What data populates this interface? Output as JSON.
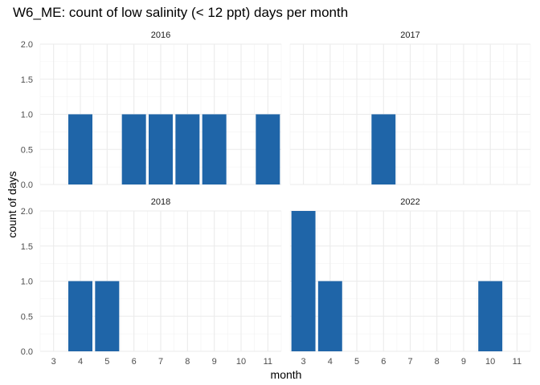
{
  "chart_data": {
    "type": "bar",
    "title": "W6_ME: count of low salinity (< 12 ppt) days per month",
    "xlabel": "month",
    "ylabel": "count of days",
    "x_ticks": [
      3,
      4,
      5,
      6,
      7,
      8,
      9,
      10,
      11
    ],
    "xlim": [
      2.5,
      11.5
    ],
    "y_ticks": [
      0.0,
      0.5,
      1.0,
      1.5,
      2.0
    ],
    "y_tick_labels": [
      "0.0",
      "0.5",
      "1.0",
      "1.5",
      "2.0"
    ],
    "ylim": [
      0,
      2
    ],
    "grid": true,
    "bar_color": "#1f65a8",
    "facets": [
      {
        "panel": "2016",
        "x": [
          4,
          6,
          7,
          8,
          9,
          11
        ],
        "values": [
          1,
          1,
          1,
          1,
          1,
          1
        ]
      },
      {
        "panel": "2017",
        "x": [
          6
        ],
        "values": [
          1
        ]
      },
      {
        "panel": "2018",
        "x": [
          4,
          5
        ],
        "values": [
          1,
          1
        ]
      },
      {
        "panel": "2022",
        "x": [
          3,
          4,
          10
        ],
        "values": [
          2,
          1,
          1
        ]
      }
    ]
  }
}
